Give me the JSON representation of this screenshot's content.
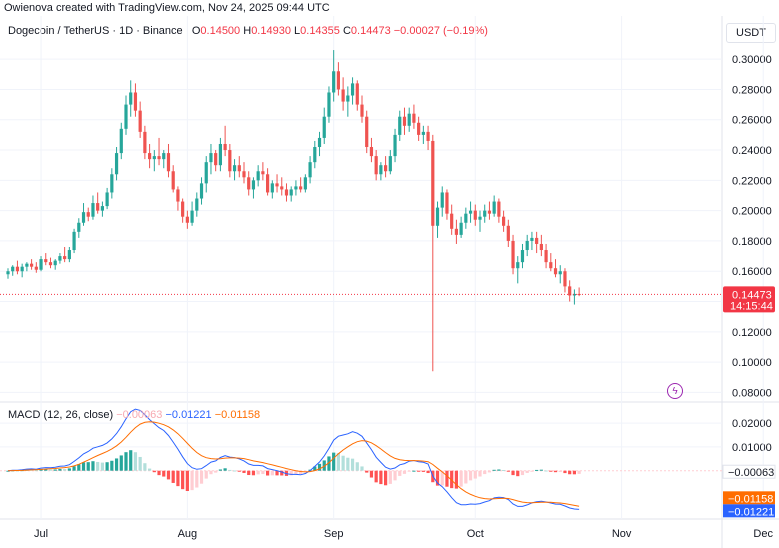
{
  "attribution": "Owienova created with TradingView.com, Nov 24, 2025 09:44 UTC",
  "header": {
    "symbol": "Dogecoin / TetherUS · 1D · Binance",
    "open_label": "O",
    "open": "0.14500",
    "high_label": "H",
    "high": "0.14930",
    "low_label": "L",
    "low": "0.14355",
    "close_label": "C",
    "close": "0.14473",
    "change": "−0.00027 (−0.19%)",
    "currency": "USDT"
  },
  "price_tag": {
    "value": "0.14473",
    "countdown": "14:15:44"
  },
  "macd": {
    "title": "MACD (12, 26, close)",
    "hist_value": "−0.00063",
    "macd_value": "−0.01221",
    "signal_value": "−0.01158"
  },
  "colors": {
    "up": "#26a69a",
    "down": "#ef5350",
    "hist_up_strong": "#26a69a",
    "hist_up_weak": "#b2dfdb",
    "hist_down_strong": "#ff5252",
    "hist_down_weak": "#ffcdd2",
    "macd_line": "#2962ff",
    "signal_line": "#ff6d00",
    "price_tag": "#f23645",
    "signal_tag": "#ff6d00",
    "macd_tag": "#2962ff"
  },
  "icon": "flash-icon",
  "chart_data": [
    {
      "type": "candlestick",
      "title": "Dogecoin / TetherUS · 1D · Binance",
      "x_ticks": [
        "Jul",
        "Aug",
        "Sep",
        "Oct",
        "Nov",
        "Dec"
      ],
      "y_ticks": [
        "0.30000",
        "0.28000",
        "0.26000",
        "0.24000",
        "0.22000",
        "0.20000",
        "0.18000",
        "0.16000",
        "0.14000",
        "0.12000",
        "0.10000",
        "0.08000"
      ],
      "ylim": [
        0.075,
        0.31
      ],
      "start_date": "2025-06-24",
      "candles": [
        [
          0.158,
          0.162,
          0.155,
          0.16
        ],
        [
          0.16,
          0.164,
          0.157,
          0.163
        ],
        [
          0.163,
          0.167,
          0.158,
          0.16
        ],
        [
          0.16,
          0.165,
          0.156,
          0.163
        ],
        [
          0.163,
          0.166,
          0.16,
          0.165
        ],
        [
          0.165,
          0.168,
          0.161,
          0.163
        ],
        [
          0.163,
          0.166,
          0.159,
          0.161
        ],
        [
          0.161,
          0.17,
          0.16,
          0.168
        ],
        [
          0.168,
          0.172,
          0.164,
          0.166
        ],
        [
          0.166,
          0.169,
          0.162,
          0.164
        ],
        [
          0.164,
          0.168,
          0.161,
          0.167
        ],
        [
          0.167,
          0.172,
          0.165,
          0.17
        ],
        [
          0.17,
          0.176,
          0.166,
          0.168
        ],
        [
          0.168,
          0.176,
          0.166,
          0.174
        ],
        [
          0.174,
          0.188,
          0.172,
          0.186
        ],
        [
          0.186,
          0.195,
          0.182,
          0.192
        ],
        [
          0.192,
          0.205,
          0.19,
          0.199
        ],
        [
          0.199,
          0.202,
          0.193,
          0.196
        ],
        [
          0.196,
          0.21,
          0.194,
          0.205
        ],
        [
          0.205,
          0.212,
          0.198,
          0.2
        ],
        [
          0.2,
          0.206,
          0.196,
          0.203
        ],
        [
          0.203,
          0.215,
          0.201,
          0.212
        ],
        [
          0.212,
          0.228,
          0.208,
          0.224
        ],
        [
          0.224,
          0.242,
          0.22,
          0.238
        ],
        [
          0.238,
          0.258,
          0.234,
          0.254
        ],
        [
          0.254,
          0.276,
          0.25,
          0.27
        ],
        [
          0.27,
          0.286,
          0.262,
          0.278
        ],
        [
          0.278,
          0.284,
          0.262,
          0.266
        ],
        [
          0.266,
          0.272,
          0.248,
          0.252
        ],
        [
          0.252,
          0.256,
          0.234,
          0.238
        ],
        [
          0.238,
          0.244,
          0.228,
          0.234
        ],
        [
          0.234,
          0.24,
          0.226,
          0.236
        ],
        [
          0.236,
          0.248,
          0.23,
          0.234
        ],
        [
          0.234,
          0.24,
          0.228,
          0.238
        ],
        [
          0.238,
          0.244,
          0.222,
          0.226
        ],
        [
          0.226,
          0.23,
          0.212,
          0.214
        ],
        [
          0.214,
          0.216,
          0.2,
          0.206
        ],
        [
          0.206,
          0.208,
          0.192,
          0.196
        ],
        [
          0.196,
          0.2,
          0.188,
          0.192
        ],
        [
          0.192,
          0.206,
          0.19,
          0.2
        ],
        [
          0.2,
          0.212,
          0.196,
          0.208
        ],
        [
          0.208,
          0.222,
          0.204,
          0.218
        ],
        [
          0.218,
          0.236,
          0.212,
          0.232
        ],
        [
          0.232,
          0.244,
          0.224,
          0.238
        ],
        [
          0.238,
          0.24,
          0.226,
          0.23
        ],
        [
          0.23,
          0.248,
          0.226,
          0.244
        ],
        [
          0.244,
          0.256,
          0.236,
          0.24
        ],
        [
          0.24,
          0.244,
          0.222,
          0.226
        ],
        [
          0.226,
          0.234,
          0.22,
          0.23
        ],
        [
          0.23,
          0.236,
          0.222,
          0.226
        ],
        [
          0.226,
          0.232,
          0.218,
          0.222
        ],
        [
          0.222,
          0.226,
          0.21,
          0.214
        ],
        [
          0.214,
          0.222,
          0.208,
          0.22
        ],
        [
          0.22,
          0.23,
          0.216,
          0.226
        ],
        [
          0.226,
          0.232,
          0.22,
          0.224
        ],
        [
          0.224,
          0.228,
          0.21,
          0.212
        ],
        [
          0.212,
          0.22,
          0.208,
          0.218
        ],
        [
          0.218,
          0.224,
          0.212,
          0.216
        ],
        [
          0.216,
          0.222,
          0.21,
          0.214
        ],
        [
          0.214,
          0.218,
          0.206,
          0.21
        ],
        [
          0.21,
          0.216,
          0.206,
          0.214
        ],
        [
          0.214,
          0.22,
          0.21,
          0.216
        ],
        [
          0.216,
          0.222,
          0.212,
          0.214
        ],
        [
          0.214,
          0.224,
          0.212,
          0.222
        ],
        [
          0.222,
          0.236,
          0.218,
          0.232
        ],
        [
          0.232,
          0.246,
          0.228,
          0.242
        ],
        [
          0.242,
          0.252,
          0.236,
          0.248
        ],
        [
          0.248,
          0.268,
          0.244,
          0.262
        ],
        [
          0.262,
          0.282,
          0.258,
          0.278
        ],
        [
          0.278,
          0.306,
          0.272,
          0.292
        ],
        [
          0.292,
          0.298,
          0.276,
          0.28
        ],
        [
          0.28,
          0.288,
          0.266,
          0.272
        ],
        [
          0.272,
          0.282,
          0.262,
          0.276
        ],
        [
          0.276,
          0.288,
          0.27,
          0.284
        ],
        [
          0.284,
          0.286,
          0.266,
          0.27
        ],
        [
          0.27,
          0.276,
          0.258,
          0.262
        ],
        [
          0.262,
          0.266,
          0.238,
          0.242
        ],
        [
          0.242,
          0.248,
          0.232,
          0.236
        ],
        [
          0.236,
          0.24,
          0.22,
          0.224
        ],
        [
          0.224,
          0.232,
          0.22,
          0.23
        ],
        [
          0.23,
          0.236,
          0.222,
          0.226
        ],
        [
          0.226,
          0.24,
          0.224,
          0.236
        ],
        [
          0.236,
          0.254,
          0.232,
          0.25
        ],
        [
          0.25,
          0.266,
          0.246,
          0.262
        ],
        [
          0.262,
          0.268,
          0.25,
          0.256
        ],
        [
          0.256,
          0.268,
          0.252,
          0.264
        ],
        [
          0.264,
          0.27,
          0.254,
          0.258
        ],
        [
          0.258,
          0.262,
          0.246,
          0.25
        ],
        [
          0.25,
          0.256,
          0.244,
          0.252
        ],
        [
          0.252,
          0.256,
          0.24,
          0.246
        ],
        [
          0.246,
          0.25,
          0.094,
          0.19
        ],
        [
          0.19,
          0.206,
          0.182,
          0.202
        ],
        [
          0.202,
          0.216,
          0.196,
          0.212
        ],
        [
          0.212,
          0.214,
          0.194,
          0.198
        ],
        [
          0.198,
          0.204,
          0.184,
          0.188
        ],
        [
          0.188,
          0.194,
          0.178,
          0.184
        ],
        [
          0.184,
          0.196,
          0.182,
          0.192
        ],
        [
          0.192,
          0.202,
          0.188,
          0.198
        ],
        [
          0.198,
          0.206,
          0.192,
          0.2
        ],
        [
          0.2,
          0.204,
          0.19,
          0.194
        ],
        [
          0.194,
          0.2,
          0.186,
          0.196
        ],
        [
          0.196,
          0.204,
          0.192,
          0.2
        ],
        [
          0.2,
          0.206,
          0.194,
          0.198
        ],
        [
          0.198,
          0.21,
          0.196,
          0.206
        ],
        [
          0.206,
          0.208,
          0.192,
          0.196
        ],
        [
          0.196,
          0.2,
          0.186,
          0.19
        ],
        [
          0.19,
          0.194,
          0.176,
          0.18
        ],
        [
          0.18,
          0.184,
          0.158,
          0.162
        ],
        [
          0.162,
          0.17,
          0.152,
          0.166
        ],
        [
          0.166,
          0.178,
          0.162,
          0.174
        ],
        [
          0.174,
          0.184,
          0.17,
          0.18
        ],
        [
          0.18,
          0.186,
          0.174,
          0.182
        ],
        [
          0.182,
          0.186,
          0.172,
          0.178
        ],
        [
          0.178,
          0.184,
          0.17,
          0.174
        ],
        [
          0.174,
          0.178,
          0.162,
          0.166
        ],
        [
          0.166,
          0.172,
          0.16,
          0.162
        ],
        [
          0.162,
          0.168,
          0.156,
          0.158
        ],
        [
          0.158,
          0.164,
          0.152,
          0.16
        ],
        [
          0.16,
          0.162,
          0.146,
          0.15
        ],
        [
          0.15,
          0.154,
          0.14,
          0.144
        ],
        [
          0.144,
          0.148,
          0.138,
          0.145
        ],
        [
          0.145,
          0.1493,
          0.14355,
          0.14473
        ]
      ]
    },
    {
      "type": "macd",
      "title": "MACD (12, 26, close)",
      "y_ticks": [
        "0.02000",
        "0.01000"
      ],
      "ylim": [
        -0.019,
        0.028
      ]
    }
  ]
}
